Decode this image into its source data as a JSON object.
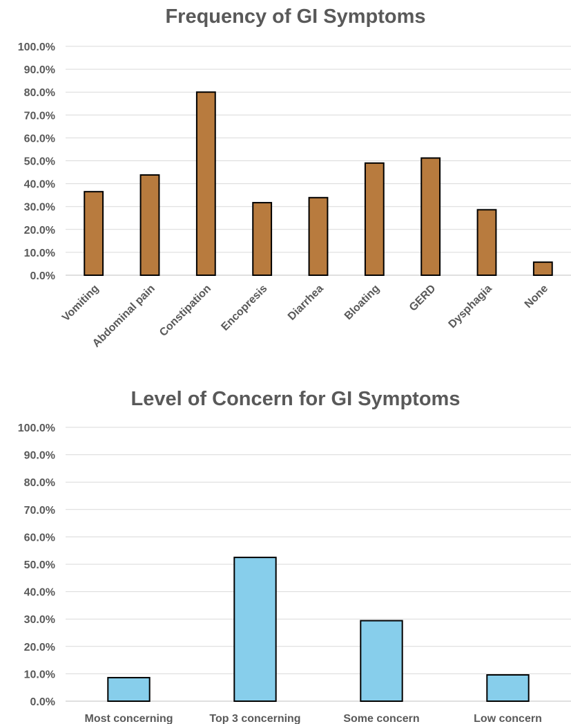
{
  "chart_data": [
    {
      "type": "bar",
      "title": "Frequency of GI Symptoms",
      "categories": [
        "Vomiting",
        "Abdominal pain",
        "Constipation",
        "Encopresis",
        "Diarrhea",
        "Bloating",
        "GERD",
        "Dysphagia",
        "None"
      ],
      "values": [
        36.5,
        43.8,
        80.0,
        31.7,
        33.9,
        49.0,
        51.2,
        28.6,
        5.7
      ],
      "ylim": [
        0,
        100
      ],
      "yticks": [
        "0.0%",
        "10.0%",
        "20.0%",
        "30.0%",
        "40.0%",
        "50.0%",
        "60.0%",
        "70.0%",
        "80.0%",
        "90.0%",
        "100.0%"
      ],
      "grid": true,
      "color": "#b87b3e",
      "category_label_rotation": "diagonal"
    },
    {
      "type": "bar",
      "title": "Level of Concern for GI Symptoms",
      "categories": [
        "Most concerning",
        "Top 3 concerning",
        "Some concern",
        "Low concern"
      ],
      "values": [
        8.6,
        52.5,
        29.4,
        9.6
      ],
      "ylim": [
        0,
        100
      ],
      "yticks": [
        "0.0%",
        "10.0%",
        "20.0%",
        "30.0%",
        "40.0%",
        "50.0%",
        "60.0%",
        "70.0%",
        "80.0%",
        "90.0%",
        "100.0%"
      ],
      "grid": true,
      "color": "#87ceeb",
      "category_label_rotation": "horizontal"
    }
  ]
}
